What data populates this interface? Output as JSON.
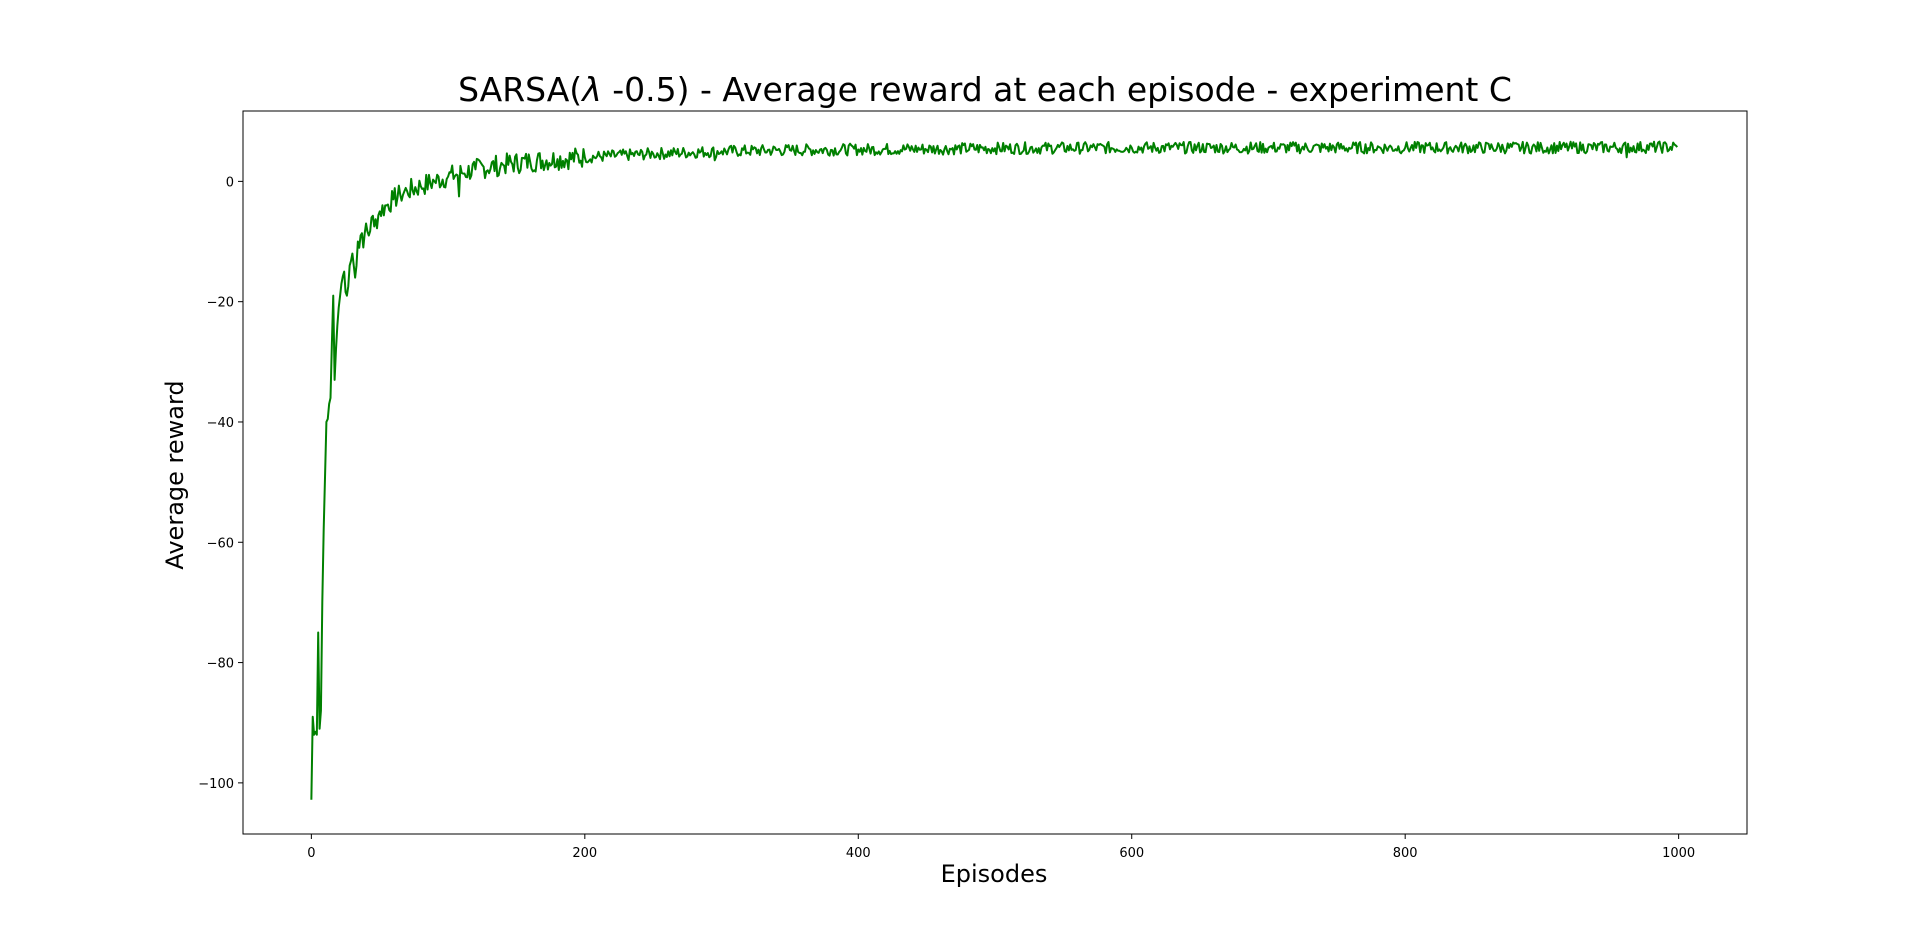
{
  "chart_data": {
    "type": "line",
    "title": "SARSA(λ -0.5) - Average reward at each episode - experiment C",
    "title_parts": {
      "before": "SARSA(",
      "lambda": "λ",
      "after": " -0.5) - Average reward at each episode - experiment C"
    },
    "xlabel": "Episodes",
    "ylabel": "Average reward",
    "xlim": [
      -50,
      1050
    ],
    "ylim": [
      -108.5,
      11.7
    ],
    "xticks": [
      0,
      200,
      400,
      600,
      800,
      1000
    ],
    "xtick_labels": [
      "0",
      "200",
      "400",
      "600",
      "800",
      "1000"
    ],
    "yticks": [
      0,
      -20,
      -40,
      -60,
      -80,
      -100
    ],
    "ytick_labels": [
      "0",
      "−20",
      "−40",
      "−60",
      "−80",
      "−100"
    ],
    "grid": false,
    "legend": "none",
    "series": [
      {
        "color": "#008000",
        "x_start": 0,
        "x_end": 999,
        "keypoints": [
          [
            0,
            -102.8
          ],
          [
            1,
            -89.0
          ],
          [
            2,
            -92.0
          ],
          [
            3,
            -91.5
          ],
          [
            4,
            -92.0
          ],
          [
            5,
            -75.0
          ],
          [
            6,
            -91.0
          ],
          [
            7,
            -88.0
          ],
          [
            8,
            -70.0
          ],
          [
            9,
            -58.0
          ],
          [
            10,
            -49.0
          ],
          [
            11,
            -40.0
          ],
          [
            12,
            -39.5
          ],
          [
            13,
            -37.0
          ],
          [
            14,
            -36.0
          ],
          [
            15,
            -27.0
          ],
          [
            16,
            -19.0
          ],
          [
            17,
            -33.0
          ],
          [
            18,
            -28.0
          ],
          [
            19,
            -24.0
          ],
          [
            20,
            -21.0
          ],
          [
            22,
            -17.0
          ],
          [
            24,
            -15.0
          ],
          [
            26,
            -19.0
          ],
          [
            28,
            -14.0
          ],
          [
            30,
            -12.0
          ],
          [
            32,
            -16.0
          ],
          [
            34,
            -10.0
          ],
          [
            36,
            -9.0
          ],
          [
            38,
            -11.0
          ],
          [
            40,
            -7.0
          ],
          [
            42,
            -9.0
          ],
          [
            44,
            -6.0
          ],
          [
            46,
            -7.5
          ],
          [
            50,
            -5.0
          ],
          [
            55,
            -4.0
          ],
          [
            60,
            -3.0
          ],
          [
            65,
            -2.2
          ],
          [
            70,
            -1.6
          ],
          [
            80,
            -0.8
          ],
          [
            90,
            0.0
          ],
          [
            100,
            0.8
          ],
          [
            110,
            1.4
          ],
          [
            120,
            2.0
          ],
          [
            140,
            2.8
          ],
          [
            160,
            3.3
          ],
          [
            180,
            3.7
          ],
          [
            200,
            4.0
          ],
          [
            250,
            4.6
          ],
          [
            300,
            5.0
          ],
          [
            350,
            5.2
          ],
          [
            400,
            5.3
          ],
          [
            500,
            5.5
          ],
          [
            600,
            5.6
          ],
          [
            700,
            5.6
          ],
          [
            800,
            5.6
          ],
          [
            900,
            5.6
          ],
          [
            999,
            5.7
          ]
        ],
        "dips": [
          [
            5,
            -75.0
          ],
          [
            9,
            -58.0
          ],
          [
            17,
            -33.0
          ],
          [
            26,
            -19.0
          ],
          [
            33,
            -14.0
          ],
          [
            108,
            -2.5
          ],
          [
            137,
            1.0
          ],
          [
            295,
            3.5
          ],
          [
            962,
            4.0
          ]
        ],
        "noise_amplitude": 1.4,
        "noise_seed": 7
      }
    ]
  }
}
